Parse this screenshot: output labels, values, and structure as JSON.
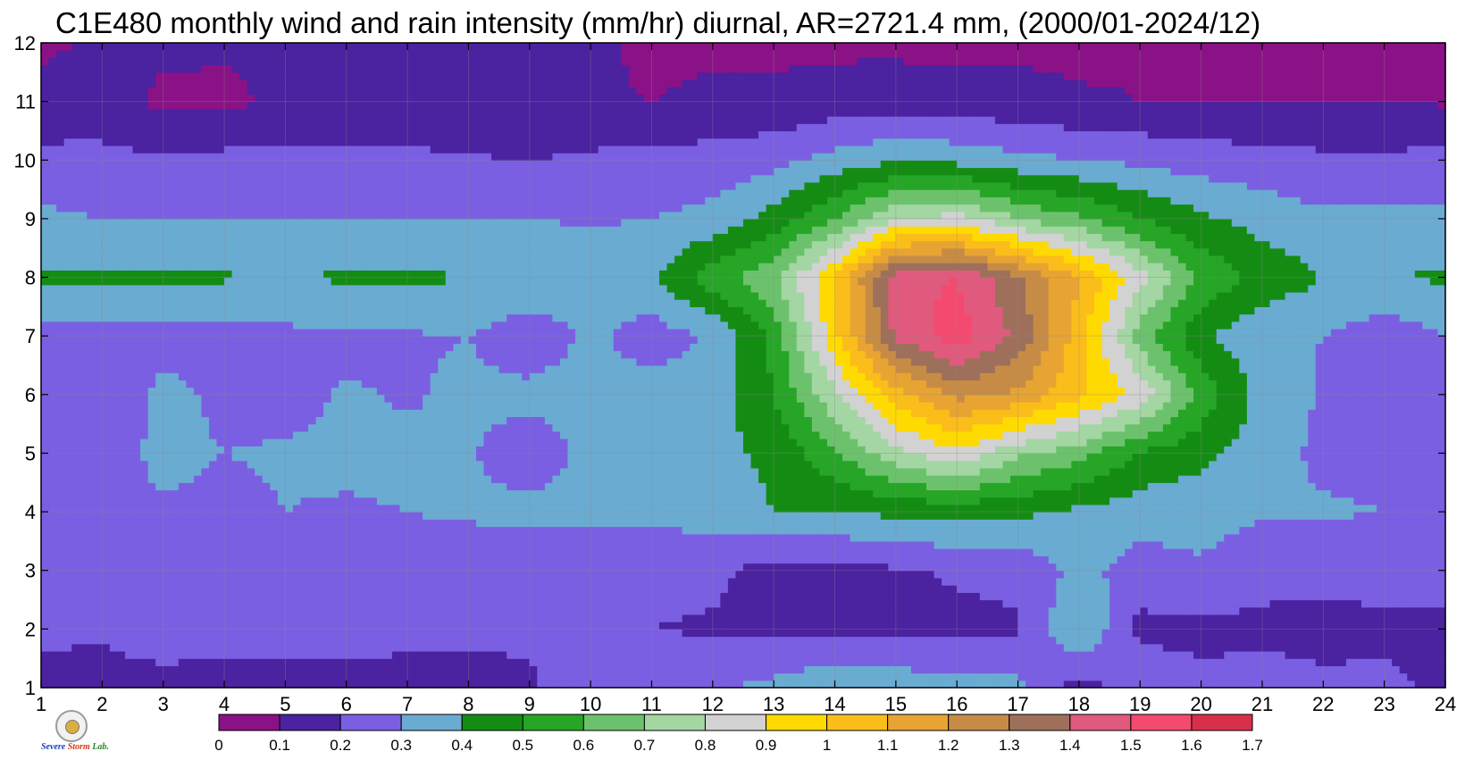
{
  "title": "C1E480 monthly wind and rain intensity (mm/hr) diurnal, AR=2721.4 mm, (2000/01-2024/12)",
  "logo": {
    "text_a": "Severe",
    "text_b": "Storm",
    "text_c": "Lab."
  },
  "chart_data": {
    "type": "heatmap",
    "title": "C1E480 monthly wind and rain intensity (mm/hr) diurnal, AR=2721.4 mm, (2000/01-2024/12)",
    "xlabel": "",
    "ylabel": "",
    "x": [
      1,
      2,
      3,
      4,
      5,
      6,
      7,
      8,
      9,
      10,
      11,
      12,
      13,
      14,
      15,
      16,
      17,
      18,
      19,
      20,
      21,
      22,
      23,
      24
    ],
    "y": [
      1,
      2,
      3,
      4,
      5,
      6,
      7,
      8,
      9,
      10,
      11,
      12
    ],
    "xlim": [
      1,
      24
    ],
    "ylim": [
      1,
      12
    ],
    "grid": true,
    "levels": [
      0,
      0.1,
      0.2,
      0.3,
      0.4,
      0.5,
      0.6,
      0.7,
      0.8,
      0.9,
      1,
      1.1,
      1.2,
      1.3,
      1.4,
      1.5,
      1.6,
      1.7
    ],
    "colorbar_labels": [
      "0",
      "0.1",
      "0.2",
      "0.3",
      "0.4",
      "0.5",
      "0.6",
      "0.7",
      "0.8",
      "0.9",
      "1",
      "1.1",
      "1.2",
      "1.3",
      "1.4",
      "1.5",
      "1.6",
      "1.7"
    ],
    "colors": [
      "#8a1286",
      "#4b22a0",
      "#7b5fe2",
      "#6aabd2",
      "#148c14",
      "#26a526",
      "#6cc26c",
      "#a3d6a3",
      "#d2d2d2",
      "#ffda00",
      "#fbbd1a",
      "#e8a432",
      "#c68c46",
      "#9e705c",
      "#e05a7e",
      "#f44a70",
      "#d8304a"
    ],
    "values": [
      [
        0.15,
        0.16,
        0.16,
        0.13,
        0.13,
        0.14,
        0.16,
        0.17,
        0.19,
        0.24,
        0.28,
        0.28,
        0.33,
        0.38,
        0.36,
        0.34,
        0.33,
        0.15,
        0.28,
        0.22,
        0.25,
        0.22,
        0.22,
        0.18
      ],
      [
        0.23,
        0.21,
        0.26,
        0.27,
        0.27,
        0.25,
        0.23,
        0.22,
        0.21,
        0.21,
        0.2,
        0.19,
        0.18,
        0.18,
        0.18,
        0.18,
        0.19,
        0.41,
        0.17,
        0.18,
        0.17,
        0.17,
        0.18,
        0.18
      ],
      [
        0.24,
        0.24,
        0.27,
        0.28,
        0.29,
        0.28,
        0.23,
        0.21,
        0.21,
        0.21,
        0.22,
        0.22,
        0.16,
        0.16,
        0.19,
        0.21,
        0.22,
        0.33,
        0.26,
        0.29,
        0.24,
        0.23,
        0.23,
        0.23
      ],
      [
        0.27,
        0.29,
        0.29,
        0.28,
        0.3,
        0.29,
        0.3,
        0.32,
        0.33,
        0.34,
        0.32,
        0.35,
        0.4,
        0.4,
        0.42,
        0.43,
        0.42,
        0.38,
        0.34,
        0.33,
        0.31,
        0.31,
        0.3,
        0.3
      ],
      [
        0.29,
        0.26,
        0.32,
        0.3,
        0.31,
        0.32,
        0.32,
        0.31,
        0.24,
        0.33,
        0.35,
        0.37,
        0.42,
        0.58,
        0.77,
        0.88,
        0.72,
        0.64,
        0.49,
        0.43,
        0.34,
        0.28,
        0.28,
        0.27
      ],
      [
        0.26,
        0.22,
        0.33,
        0.28,
        0.27,
        0.31,
        0.29,
        0.32,
        0.33,
        0.34,
        0.34,
        0.35,
        0.5,
        0.78,
        1.05,
        1.23,
        1.18,
        1.02,
        0.87,
        0.57,
        0.36,
        0.29,
        0.27,
        0.24
      ],
      [
        0.26,
        0.25,
        0.26,
        0.27,
        0.28,
        0.28,
        0.29,
        0.3,
        0.23,
        0.32,
        0.25,
        0.31,
        0.53,
        0.97,
        1.42,
        1.56,
        1.37,
        1.05,
        0.65,
        0.42,
        0.32,
        0.3,
        0.24,
        0.3
      ],
      [
        0.41,
        0.42,
        0.42,
        0.41,
        0.38,
        0.42,
        0.42,
        0.4,
        0.39,
        0.37,
        0.38,
        0.56,
        0.68,
        1.0,
        1.47,
        1.5,
        1.32,
        1.1,
        0.84,
        0.58,
        0.47,
        0.4,
        0.4,
        0.41
      ],
      [
        0.32,
        0.3,
        0.3,
        0.3,
        0.3,
        0.3,
        0.3,
        0.3,
        0.3,
        0.29,
        0.3,
        0.33,
        0.44,
        0.6,
        0.79,
        0.84,
        0.7,
        0.62,
        0.5,
        0.42,
        0.36,
        0.32,
        0.32,
        0.32
      ],
      [
        0.23,
        0.23,
        0.21,
        0.23,
        0.23,
        0.22,
        0.22,
        0.21,
        0.2,
        0.22,
        0.23,
        0.24,
        0.27,
        0.34,
        0.39,
        0.37,
        0.33,
        0.3,
        0.28,
        0.25,
        0.24,
        0.22,
        0.22,
        0.23
      ],
      [
        0.13,
        0.14,
        0.08,
        0.07,
        0.13,
        0.14,
        0.14,
        0.11,
        0.1,
        0.11,
        0.1,
        0.12,
        0.12,
        0.14,
        0.15,
        0.14,
        0.13,
        0.11,
        0.1,
        0.1,
        0.1,
        0.1,
        0.1,
        0.09
      ],
      [
        0.08,
        0.12,
        0.12,
        0.12,
        0.12,
        0.12,
        0.12,
        0.12,
        0.12,
        0.12,
        0.08,
        0.08,
        0.08,
        0.08,
        0.08,
        0.07,
        0.08,
        0.08,
        0.09,
        0.08,
        0.09,
        0.09,
        0.08,
        0.08
      ]
    ]
  }
}
